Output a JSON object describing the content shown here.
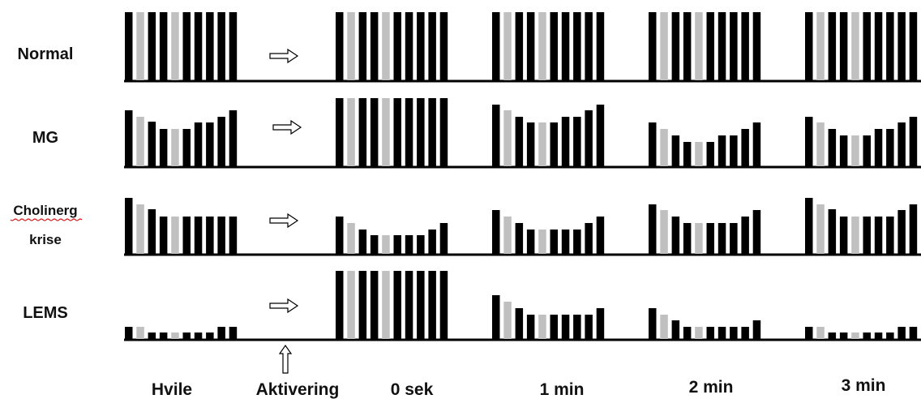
{
  "rows": [
    {
      "label": "Normal",
      "label_lines": [
        "Normal"
      ]
    },
    {
      "label": "MG",
      "label_lines": [
        "MG"
      ]
    },
    {
      "label": "Cholinerg krise",
      "label_lines": [
        "Cholinerg",
        "krise"
      ]
    },
    {
      "label": "LEMS",
      "label_lines": [
        "LEMS"
      ]
    }
  ],
  "columns": [
    "Hvile",
    "Aktivering",
    "0 sek",
    "1 min",
    "2 min",
    "3 min"
  ],
  "colors": {
    "bar": "#000000",
    "bar_highlight": "#c0c0c0",
    "baseline": "#000000",
    "spellcheck": "#dd1111"
  },
  "chart_data": {
    "type": "bar",
    "description_units": "relative amplitude (0-1) of 10 repetitive-stimulation responses",
    "highlight_pulses": [
      1,
      4
    ],
    "panels": [
      {
        "row": "Normal",
        "column": "Hvile",
        "values": [
          1,
          1,
          1,
          1,
          1,
          1,
          1,
          1,
          1,
          1
        ]
      },
      {
        "row": "Normal",
        "column": "0 sek",
        "values": [
          1,
          1,
          1,
          1,
          1,
          1,
          1,
          1,
          1,
          1
        ]
      },
      {
        "row": "Normal",
        "column": "1 min",
        "values": [
          1,
          1,
          1,
          1,
          1,
          1,
          1,
          1,
          1,
          1
        ]
      },
      {
        "row": "Normal",
        "column": "2 min",
        "values": [
          1,
          1,
          1,
          1,
          1,
          1,
          1,
          1,
          1,
          1
        ]
      },
      {
        "row": "Normal",
        "column": "3 min",
        "values": [
          1,
          1,
          1,
          1,
          1,
          1,
          1,
          1,
          1,
          1
        ]
      },
      {
        "row": "MG",
        "column": "Hvile",
        "values": [
          0.82,
          0.73,
          0.66,
          0.55,
          0.55,
          0.55,
          0.64,
          0.64,
          0.73,
          0.82
        ]
      },
      {
        "row": "MG",
        "column": "0 sek",
        "values": [
          1,
          1,
          1,
          1,
          1,
          1,
          1,
          1,
          1,
          1
        ]
      },
      {
        "row": "MG",
        "column": "1 min",
        "values": [
          0.91,
          0.82,
          0.73,
          0.64,
          0.64,
          0.64,
          0.73,
          0.73,
          0.82,
          0.91
        ]
      },
      {
        "row": "MG",
        "column": "2 min",
        "values": [
          0.64,
          0.55,
          0.45,
          0.36,
          0.36,
          0.36,
          0.45,
          0.45,
          0.55,
          0.64
        ]
      },
      {
        "row": "MG",
        "column": "3 min",
        "values": [
          0.73,
          0.64,
          0.55,
          0.45,
          0.45,
          0.45,
          0.55,
          0.55,
          0.64,
          0.73
        ]
      },
      {
        "row": "Cholinerg krise",
        "column": "Hvile",
        "values": [
          0.82,
          0.73,
          0.66,
          0.55,
          0.55,
          0.55,
          0.55,
          0.55,
          0.55,
          0.55
        ]
      },
      {
        "row": "Cholinerg krise",
        "column": "0 sek",
        "values": [
          0.55,
          0.45,
          0.36,
          0.27,
          0.27,
          0.27,
          0.27,
          0.27,
          0.36,
          0.45
        ]
      },
      {
        "row": "Cholinerg krise",
        "column": "1 min",
        "values": [
          0.64,
          0.55,
          0.45,
          0.36,
          0.36,
          0.36,
          0.36,
          0.36,
          0.45,
          0.55
        ]
      },
      {
        "row": "Cholinerg krise",
        "column": "2 min",
        "values": [
          0.73,
          0.64,
          0.55,
          0.45,
          0.45,
          0.45,
          0.45,
          0.45,
          0.55,
          0.64
        ]
      },
      {
        "row": "Cholinerg krise",
        "column": "3 min",
        "values": [
          0.82,
          0.73,
          0.66,
          0.55,
          0.55,
          0.55,
          0.55,
          0.55,
          0.64,
          0.73
        ]
      },
      {
        "row": "LEMS",
        "column": "Hvile",
        "values": [
          0.18,
          0.18,
          0.1,
          0.1,
          0.1,
          0.1,
          0.1,
          0.1,
          0.18,
          0.18
        ]
      },
      {
        "row": "LEMS",
        "column": "0 sek",
        "values": [
          1,
          1,
          1,
          1,
          1,
          1,
          1,
          1,
          1,
          1
        ]
      },
      {
        "row": "LEMS",
        "column": "1 min",
        "values": [
          0.64,
          0.55,
          0.45,
          0.36,
          0.36,
          0.36,
          0.36,
          0.36,
          0.36,
          0.45
        ]
      },
      {
        "row": "LEMS",
        "column": "2 min",
        "values": [
          0.45,
          0.36,
          0.27,
          0.18,
          0.18,
          0.18,
          0.18,
          0.18,
          0.18,
          0.27
        ]
      },
      {
        "row": "LEMS",
        "column": "3 min",
        "values": [
          0.18,
          0.18,
          0.1,
          0.1,
          0.1,
          0.1,
          0.1,
          0.1,
          0.18,
          0.18
        ]
      }
    ]
  }
}
